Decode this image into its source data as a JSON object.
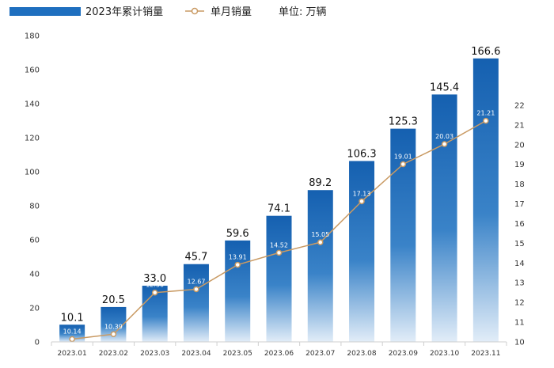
{
  "chart_data": {
    "type": "bar",
    "categories": [
      "2023.01",
      "2023.02",
      "2023.03",
      "2023.04",
      "2023.05",
      "2023.06",
      "2023.07",
      "2023.08",
      "2023.09",
      "2023.10",
      "2023.11"
    ],
    "series": [
      {
        "name": "2023年累计销量",
        "type": "bar",
        "axis": "left",
        "values": [
          10.1,
          20.5,
          33.0,
          45.7,
          59.6,
          74.1,
          89.2,
          106.3,
          125.3,
          145.4,
          166.6
        ],
        "labels": [
          "10.1",
          "20.5",
          "33.0",
          "45.7",
          "59.6",
          "74.1",
          "89.2",
          "106.3",
          "125.3",
          "145.4",
          "166.6"
        ]
      },
      {
        "name": "单月销量",
        "type": "line",
        "axis": "right",
        "values": [
          10.14,
          10.39,
          12.5,
          12.67,
          13.91,
          14.52,
          15.05,
          17.13,
          19.01,
          20.03,
          21.21
        ],
        "labels": [
          "10.14",
          "10.39",
          "12.50",
          "12.67",
          "13.91",
          "14.52",
          "15.05",
          "17.13",
          "19.01",
          "20.03",
          "21.21"
        ]
      }
    ],
    "unit_label": "单位: 万辆",
    "ylim": [
      0,
      180
    ],
    "yticks": [
      "0",
      "20",
      "40",
      "60",
      "80",
      "100",
      "120",
      "140",
      "160",
      "180"
    ],
    "y2lim": [
      10,
      23
    ],
    "y2ticks": [
      "10",
      "11",
      "12",
      "13",
      "14",
      "15",
      "16",
      "17",
      "18",
      "19",
      "20",
      "21",
      "22"
    ],
    "legend_position": "top-left",
    "grid": false,
    "colors": {
      "bar_top": "#1560b0",
      "bar_bottom": "#e2edf8",
      "line": "#c99a63",
      "marker_fill": "#ffffff",
      "legend_bar": "#1e6fbf"
    }
  }
}
